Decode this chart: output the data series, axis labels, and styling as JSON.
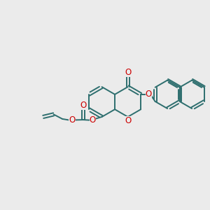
{
  "bg_color": "#ebebeb",
  "bond_color": "#2d6e6e",
  "heteroatom_color": "#cc0000",
  "line_width": 1.4,
  "font_size": 8.5,
  "fig_bg": "#ebebeb",
  "xlim": [
    0,
    10
  ],
  "ylim": [
    0,
    10
  ]
}
